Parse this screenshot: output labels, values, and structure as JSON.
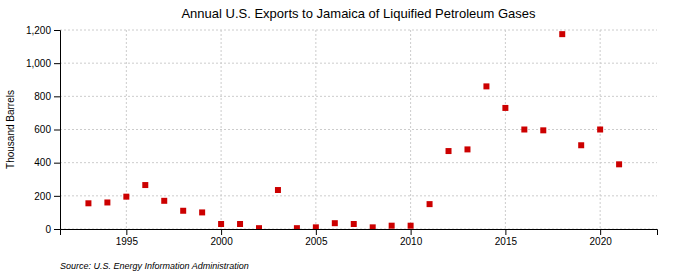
{
  "chart_data": {
    "type": "scatter",
    "title": "Annual U.S. Exports to Jamaica of Liquified Petroleum Gases",
    "ylabel": "Thousand Barrels",
    "source": "Source: U.S. Energy Information Administration",
    "x": [
      1993,
      1994,
      1995,
      1996,
      1997,
      1998,
      1999,
      2000,
      2001,
      2002,
      2003,
      2004,
      2005,
      2006,
      2007,
      2008,
      2009,
      2010,
      2011,
      2012,
      2013,
      2014,
      2015,
      2016,
      2017,
      2018,
      2019,
      2020,
      2021
    ],
    "values": [
      155,
      160,
      195,
      265,
      170,
      110,
      100,
      30,
      30,
      5,
      235,
      5,
      10,
      35,
      30,
      10,
      20,
      20,
      150,
      470,
      480,
      860,
      730,
      600,
      595,
      1175,
      505,
      600,
      390
    ],
    "color": "#cc0000",
    "marker": "square",
    "xlim": [
      1991.5,
      2023
    ],
    "xticks": [
      1995,
      2000,
      2005,
      2010,
      2015,
      2020
    ],
    "ylim": [
      0,
      1200
    ],
    "yticks": [
      0,
      200,
      400,
      600,
      800,
      {
        "value": 1000,
        "label": "1,000"
      },
      {
        "value": 1200,
        "label": "1,200"
      }
    ],
    "grid": true
  }
}
